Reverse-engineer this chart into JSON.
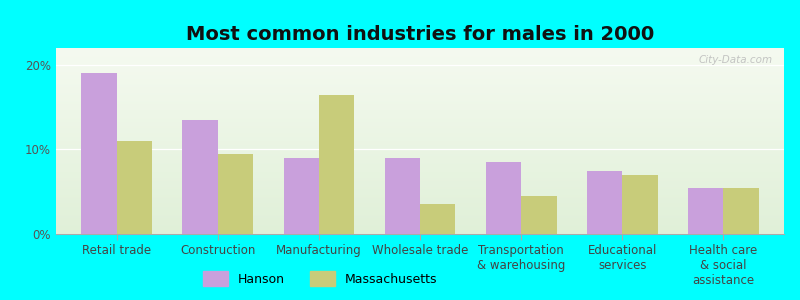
{
  "title": "Most common industries for males in 2000",
  "categories": [
    "Retail trade",
    "Construction",
    "Manufacturing",
    "Wholesale trade",
    "Transportation\n& warehousing",
    "Educational\nservices",
    "Health care\n& social\nassistance"
  ],
  "hanson_values": [
    19.0,
    13.5,
    9.0,
    9.0,
    8.5,
    7.5,
    5.5
  ],
  "massachusetts_values": [
    11.0,
    9.5,
    16.5,
    3.5,
    4.5,
    7.0,
    5.5
  ],
  "hanson_color": "#c9a0dc",
  "massachusetts_color": "#c8cc7a",
  "bg_top_color": "#e0f0d8",
  "bg_bottom_color": "#f5faf0",
  "outer_background": "#00ffff",
  "ylim": [
    0,
    22
  ],
  "yticks": [
    0,
    10,
    20
  ],
  "ytick_labels": [
    "0%",
    "10%",
    "20%"
  ],
  "legend_hanson": "Hanson",
  "legend_massachusetts": "Massachusetts",
  "title_fontsize": 14,
  "tick_fontsize": 8.5,
  "legend_fontsize": 9,
  "watermark": "City-Data.com"
}
